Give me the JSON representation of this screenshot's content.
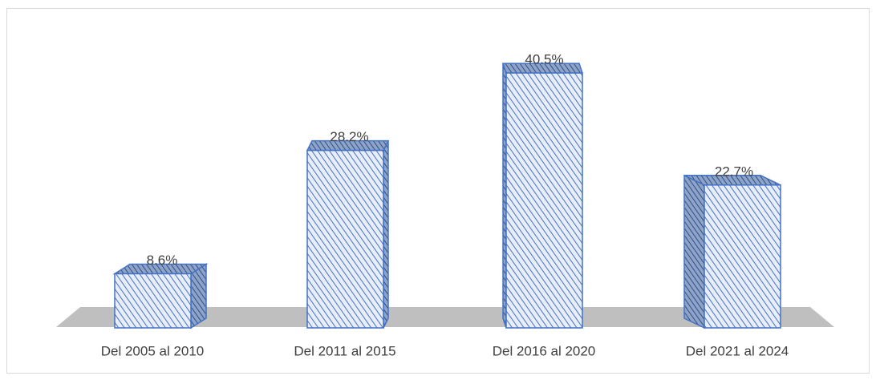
{
  "chart_data": {
    "type": "bar3d",
    "categories": [
      "Del 2005 al 2010",
      "Del 2011 al 2015",
      "Del 2016 al 2020",
      "Del 2021 al 2024"
    ],
    "values": [
      8.6,
      28.2,
      40.5,
      22.7
    ],
    "value_labels": [
      "8.6%",
      "28.2%",
      "40.5%",
      "22.7%"
    ],
    "color": "#4472c4"
  }
}
